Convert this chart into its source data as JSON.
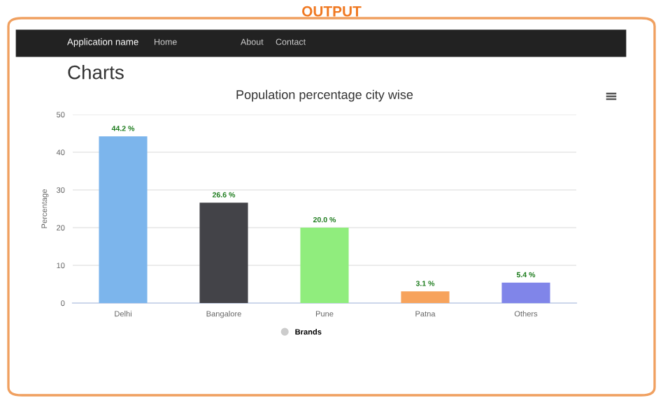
{
  "chart_data": {
    "type": "bar",
    "title": "Population percentage city wise",
    "ylabel": "Percentage",
    "categories": [
      "Delhi",
      "Bangalore",
      "Pune",
      "Patna",
      "Others"
    ],
    "series": [
      {
        "name": "Brands",
        "colors": [
          "#7cb5ec",
          "#434348",
          "#90ed7d",
          "#f7a35c",
          "#8085e9"
        ],
        "values": [
          44.2,
          26.6,
          20.0,
          3.1,
          5.4
        ],
        "value_labels": [
          "44.2 %",
          "26.6 %",
          "20.0 %",
          "3.1 %",
          "5.4 %"
        ]
      }
    ],
    "ylim": [
      0,
      50
    ],
    "yticks": [
      0,
      10,
      20,
      30,
      40,
      50
    ],
    "grid": "y",
    "legend": "bottom",
    "annotations": [
      "OUTPUT",
      "Application name",
      "Home",
      "About",
      "Contact",
      "Charts"
    ]
  }
}
